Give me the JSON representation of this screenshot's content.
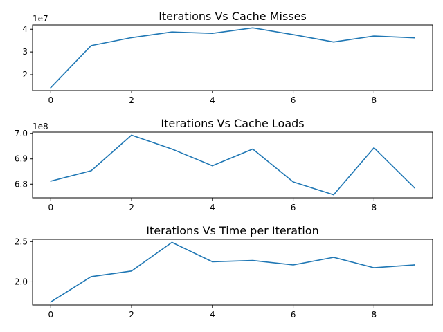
{
  "colors": {
    "series": "#1f77b4",
    "axes": "#000000",
    "background": "#ffffff"
  },
  "chart_data": [
    {
      "type": "line",
      "title": "Iterations Vs Cache Misses",
      "xlabel": "",
      "ylabel": "",
      "y_offset_label": "1e7",
      "x": [
        0,
        1,
        2,
        3,
        4,
        5,
        6,
        7,
        8,
        9
      ],
      "series": [
        {
          "values": [
            14300000,
            32800000,
            36300000,
            38800000,
            38200000,
            40600000,
            37600000,
            34400000,
            37000000,
            36200000
          ]
        }
      ],
      "xlim": [
        -0.45,
        9.45
      ],
      "ylim": [
        13000000,
        41900000
      ],
      "x_ticks": [
        0,
        2,
        4,
        6,
        8
      ],
      "x_tick_labels": [
        "0",
        "2",
        "4",
        "6",
        "8"
      ],
      "y_ticks": [
        20000000,
        30000000,
        40000000
      ],
      "y_tick_labels": [
        "2",
        "3",
        "4"
      ],
      "grid": false,
      "legend": "none"
    },
    {
      "type": "line",
      "title": "Iterations Vs Cache Loads",
      "xlabel": "",
      "ylabel": "",
      "y_offset_label": "1e8",
      "x": [
        0,
        1,
        2,
        3,
        4,
        5,
        6,
        7,
        8,
        9
      ],
      "series": [
        {
          "values": [
            681200000,
            685300000,
            699400000,
            693900000,
            687300000,
            693900000,
            680900000,
            675800000,
            694400000,
            678600000
          ]
        }
      ],
      "xlim": [
        -0.45,
        9.45
      ],
      "ylim": [
        674600000,
        700600000
      ],
      "x_ticks": [
        0,
        2,
        4,
        6,
        8
      ],
      "x_tick_labels": [
        "0",
        "2",
        "4",
        "6",
        "8"
      ],
      "y_ticks": [
        680000000,
        690000000,
        700000000
      ],
      "y_tick_labels": [
        "6.8",
        "6.9",
        "7.0"
      ],
      "grid": false,
      "legend": "none"
    },
    {
      "type": "line",
      "title": "Iterations Vs Time per Iteration",
      "xlabel": "",
      "ylabel": "",
      "y_offset_label": "",
      "x": [
        0,
        1,
        2,
        3,
        4,
        5,
        6,
        7,
        8,
        9
      ],
      "series": [
        {
          "values": [
            1.75,
            2.065,
            2.135,
            2.49,
            2.25,
            2.265,
            2.21,
            2.305,
            2.175,
            2.21
          ]
        }
      ],
      "xlim": [
        -0.45,
        9.45
      ],
      "ylim": [
        1.712,
        2.528
      ],
      "x_ticks": [
        0,
        2,
        4,
        6,
        8
      ],
      "x_tick_labels": [
        "0",
        "2",
        "4",
        "6",
        "8"
      ],
      "y_ticks": [
        2.0,
        2.5
      ],
      "y_tick_labels": [
        "2.0",
        "2.5"
      ],
      "grid": false,
      "legend": "none"
    }
  ]
}
